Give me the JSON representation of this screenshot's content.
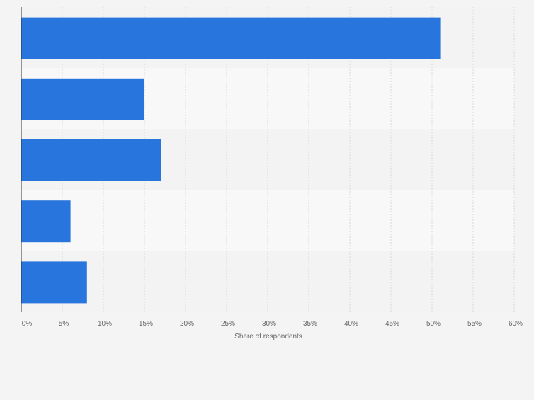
{
  "chart_data": {
    "type": "bar",
    "orientation": "horizontal",
    "categories": [
      "",
      "",
      "",
      "",
      ""
    ],
    "values": [
      51,
      15,
      17,
      6,
      8
    ],
    "xlabel": "Share of respondents",
    "ylabel": "",
    "xlim": [
      0,
      60
    ],
    "x_ticks": [
      "0%",
      "5%",
      "10%",
      "15%",
      "20%",
      "25%",
      "30%",
      "35%",
      "40%",
      "45%",
      "50%",
      "55%",
      "60%"
    ],
    "grid": true,
    "legend": "none"
  },
  "colors": {
    "bar": "#2876dd",
    "band_dark": "#f3f3f3",
    "band_light": "#f8f8f8",
    "grid": "#d8d8d8",
    "axis": "#333333",
    "tick_text": "#666666",
    "background": "#f4f4f4"
  }
}
